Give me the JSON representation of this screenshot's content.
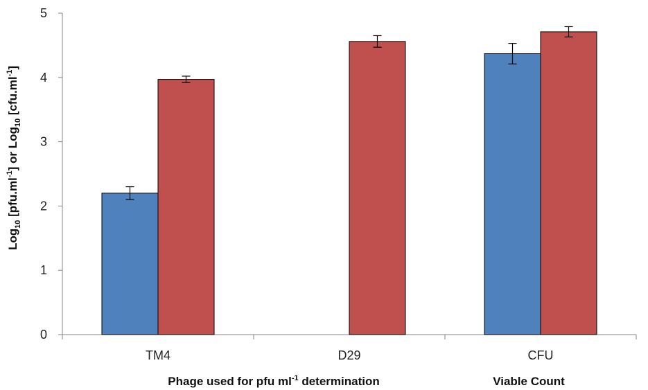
{
  "chart_data": {
    "type": "bar",
    "categories": [
      "TM4",
      "D29",
      "CFU"
    ],
    "series": [
      {
        "color": "#4F81BD",
        "values": [
          2.2,
          null,
          4.37
        ],
        "errors": [
          0.1,
          null,
          0.16
        ]
      },
      {
        "color": "#C0504D",
        "values": [
          3.97,
          4.56,
          4.71
        ],
        "errors": [
          0.05,
          0.09,
          0.08
        ]
      }
    ],
    "ylim": [
      0,
      5
    ],
    "yticks": [
      "0",
      "1",
      "2",
      "3",
      "4",
      "5"
    ],
    "ylabel": {
      "part1": "Log",
      "sub1": "10",
      "part2": " [pfu.ml",
      "sup1": "-1",
      "part3": "] or Log",
      "sub2": "10",
      "part4": " [cfu.ml",
      "sup2": "-1",
      "part5": "]"
    },
    "xgroup_labels": {
      "left_main": "Phage used for pfu ml",
      "left_sup": "-1",
      "left_tail": " determination",
      "right": "Viable Count"
    },
    "grid": false,
    "legend": "none"
  }
}
